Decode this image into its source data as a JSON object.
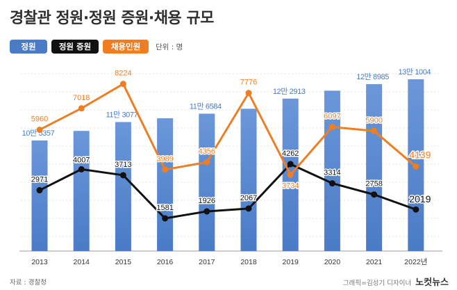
{
  "title": "경찰관 정원·정원 증원·채용 규모",
  "legend": {
    "quota": "정원",
    "increase": "정원 증원",
    "hiring": "채용인원",
    "unit": "단위 : 명"
  },
  "footer": {
    "source": "자료 : 경찰청",
    "credit": "그래픽=김성기 디자이너",
    "brand": "노컷뉴스"
  },
  "colors": {
    "bar": "#4a7bc6",
    "bar_top": "#6b97da",
    "quota_label": "#4a7bc6",
    "increase_line": "#111111",
    "hiring_line": "#ef7d22",
    "grid": "#d6d6d6"
  },
  "chart_data": {
    "type": "bar",
    "title": "경찰관 정원·정원 증원·채용 규모",
    "unit": "명",
    "categories": [
      "2013",
      "2014",
      "2015",
      "2016",
      "2017",
      "2018",
      "2019",
      "2020",
      "2021",
      "2022년"
    ],
    "quota": {
      "name": "정원",
      "type": "bar",
      "values": [
        105357,
        109364,
        113077,
        114658,
        116584,
        118651,
        122913,
        126227,
        128985,
        131004
      ],
      "labels": [
        "10만 5357",
        "",
        "11만 3077",
        "",
        "11만 6584",
        "",
        "12만 2913",
        "",
        "12만 8985",
        "13만 1004"
      ]
    },
    "series": [
      {
        "name": "정원 증원",
        "type": "line",
        "values": [
          2971,
          4007,
          3713,
          1581,
          1926,
          2067,
          4262,
          3314,
          2758,
          2019
        ],
        "labels": [
          "2971",
          "4007",
          "3713",
          "1581",
          "1926",
          "2067",
          "4262",
          "3314",
          "2758",
          "2019"
        ]
      },
      {
        "name": "채용인원",
        "type": "line",
        "values": [
          5960,
          7018,
          8224,
          3989,
          4356,
          7776,
          3734,
          6097,
          5900,
          4139
        ],
        "labels": [
          "5960",
          "7018",
          "8224",
          "3989",
          "4356",
          "7776",
          "3734",
          "6097",
          "5900",
          "4139"
        ]
      }
    ],
    "xlabel": "",
    "ylabel": "",
    "grid": true
  }
}
